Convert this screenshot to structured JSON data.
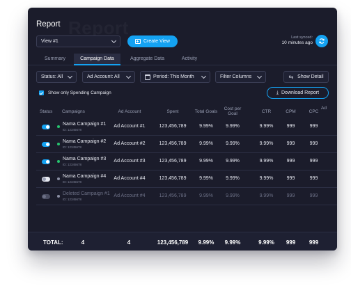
{
  "header": {
    "title": "Report",
    "watermark": "Report",
    "view_select": "View #1",
    "create_view_label": "Create View",
    "last_synced_label": "Last synced:",
    "last_synced_value": "10 minutes ago"
  },
  "tabs": [
    {
      "label": "Summary",
      "active": false
    },
    {
      "label": "Campaign Data",
      "active": true
    },
    {
      "label": "Aggregate Data",
      "active": false
    },
    {
      "label": "Activity",
      "active": false
    }
  ],
  "filters": {
    "status": "Status: All",
    "ad_account": "Ad Account: All",
    "period": "Period: This Month",
    "filter_columns": "Filter Columns",
    "show_detail": "Show Detail"
  },
  "spending_checkbox_label": "Show only Spending Campaign",
  "download_label": "Download Report",
  "columns": [
    "Status",
    "Campaigns",
    "Ad Account",
    "Spent",
    "Total Goals",
    "Cost per Goal",
    "CTR",
    "CPM",
    "CPC",
    "Ad"
  ],
  "rows": [
    {
      "status": "on",
      "name": "Nama Campaign #1",
      "id": "ID: 12345678",
      "account": "Ad Account #1",
      "spent": "123,456,789",
      "goals": "9.99%",
      "cpg": "9.99%",
      "ctr": "9.99%",
      "cpm": "999",
      "cpc": "999"
    },
    {
      "status": "on",
      "name": "Nama Campaign #2",
      "id": "ID: 12345678",
      "account": "Ad Account #2",
      "spent": "123,456,789",
      "goals": "9.99%",
      "cpg": "9.99%",
      "ctr": "9.99%",
      "cpm": "999",
      "cpc": "999"
    },
    {
      "status": "on",
      "name": "Nama Campaign #3",
      "id": "ID: 12345678",
      "account": "Ad Account #3",
      "spent": "123,456,789",
      "goals": "9.99%",
      "cpg": "9.99%",
      "ctr": "9.99%",
      "cpm": "999",
      "cpc": "999"
    },
    {
      "status": "off",
      "name": "Nama Campaign #4",
      "id": "ID: 12345678",
      "account": "Ad Account #4",
      "spent": "123,456,789",
      "goals": "9.99%",
      "cpg": "9.99%",
      "ctr": "9.99%",
      "cpm": "999",
      "cpc": "999"
    },
    {
      "status": "deleted",
      "name": "Deleted Campaign #1",
      "id": "ID: 12345678",
      "account": "Ad Account #4",
      "spent": "123,456,789",
      "goals": "9.99%",
      "cpg": "9.99%",
      "ctr": "9.99%",
      "cpm": "999",
      "cpc": "999"
    }
  ],
  "total": {
    "label": "TOTAL:",
    "campaigns": "4",
    "accounts": "4",
    "spent": "123,456,789",
    "goals": "9.99%",
    "cpg": "9.99%",
    "ctr": "9.99%",
    "cpm": "999",
    "cpc": "999"
  },
  "colors": {
    "accent": "#14a2f2",
    "background": "#1b1c2b",
    "active_dot": "#27c46e"
  }
}
